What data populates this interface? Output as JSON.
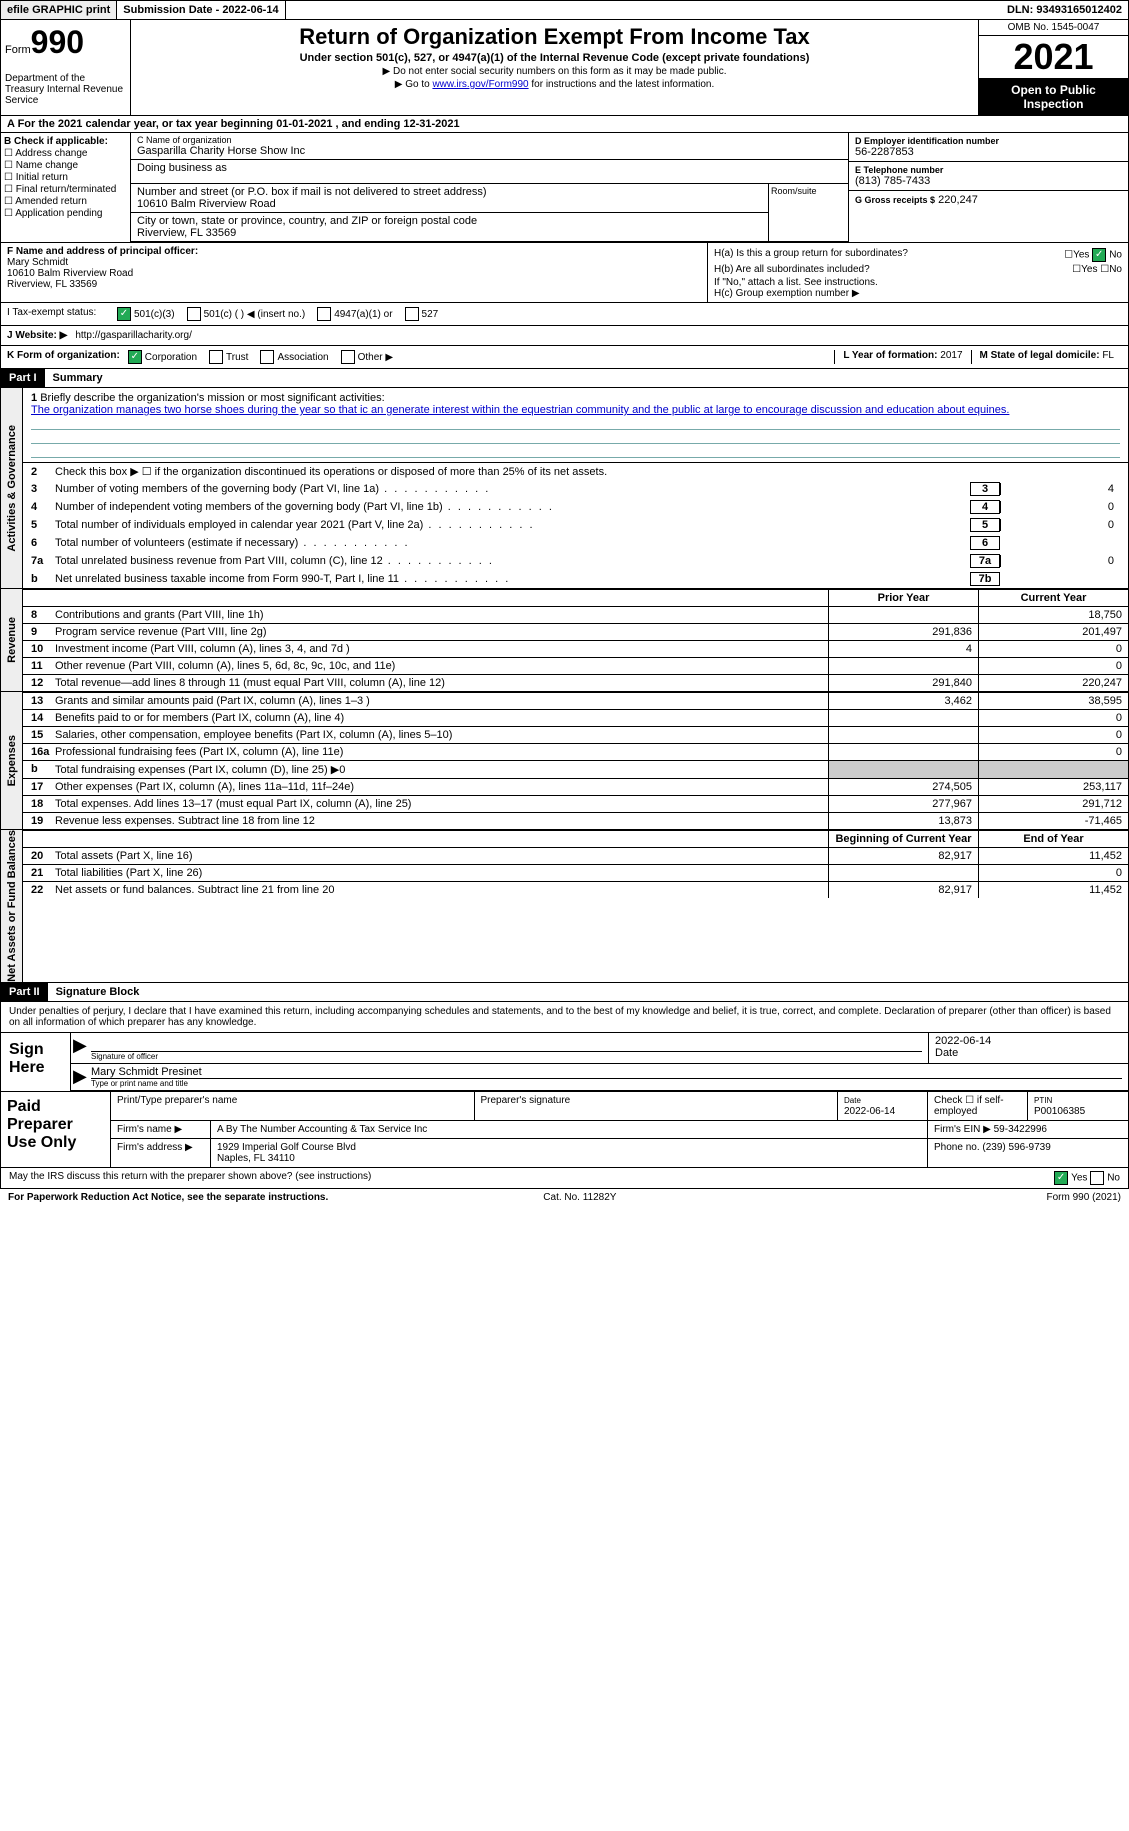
{
  "top": {
    "efile": "efile GRAPHIC print",
    "sub_date_label": "Submission Date - 2022-06-14",
    "dln": "DLN: 93493165012402"
  },
  "header": {
    "form_label": "Form",
    "form_num": "990",
    "dept": "Department of the Treasury\nInternal Revenue Service",
    "title": "Return of Organization Exempt From Income Tax",
    "sub": "Under section 501(c), 527, or 4947(a)(1) of the Internal Revenue Code (except private foundations)",
    "note1": "▶ Do not enter social security numbers on this form as it may be made public.",
    "note2_pre": "▶ Go to ",
    "note2_link": "www.irs.gov/Form990",
    "note2_post": " for instructions and the latest information.",
    "omb": "OMB No. 1545-0047",
    "year": "2021",
    "open": "Open to Public Inspection"
  },
  "rowA": "A For the 2021 calendar year, or tax year beginning 01-01-2021   , and ending 12-31-2021",
  "boxB": {
    "title": "B Check if applicable:",
    "items": [
      "Address change",
      "Name change",
      "Initial return",
      "Final return/terminated",
      "Amended return",
      "Application pending"
    ]
  },
  "boxC": {
    "name_lbl": "C Name of organization",
    "name": "Gasparilla Charity Horse Show Inc",
    "dba_lbl": "Doing business as",
    "addr_lbl": "Number and street (or P.O. box if mail is not delivered to street address)",
    "addr": "10610 Balm Riverview Road",
    "room_lbl": "Room/suite",
    "city_lbl": "City or town, state or province, country, and ZIP or foreign postal code",
    "city": "Riverview, FL  33569"
  },
  "boxD": {
    "lbl": "D Employer identification number",
    "val": "56-2287853"
  },
  "boxE": {
    "lbl": "E Telephone number",
    "val": "(813) 785-7433"
  },
  "boxG": {
    "lbl": "G Gross receipts $",
    "val": "220,247"
  },
  "boxF": {
    "lbl": "F Name and address of principal officer:",
    "name": "Mary Schmidt",
    "addr1": "10610 Balm Riverview Road",
    "addr2": "Riverview, FL  33569"
  },
  "boxH": {
    "ha": "H(a)  Is this a group return for subordinates?",
    "hb": "H(b)  Are all subordinates included?",
    "hb_note": "If \"No,\" attach a list. See instructions.",
    "hc": "H(c)  Group exemption number ▶"
  },
  "statusI": {
    "lbl": "I   Tax-exempt status:",
    "opts": [
      "501(c)(3)",
      "501(c) (  ) ◀ (insert no.)",
      "4947(a)(1) or",
      "527"
    ]
  },
  "rowJ": {
    "lbl": "J   Website: ▶",
    "val": "http://gasparillacharity.org/"
  },
  "rowK": {
    "lbl": "K Form of organization:",
    "opts": [
      "Corporation",
      "Trust",
      "Association",
      "Other ▶"
    ],
    "L_lbl": "L Year of formation:",
    "L_val": "2017",
    "M_lbl": "M State of legal domicile:",
    "M_val": "FL"
  },
  "part1": {
    "hdr": "Part I",
    "title": "Summary"
  },
  "mission": {
    "num": "1",
    "lbl": "Briefly describe the organization's mission or most significant activities:",
    "text": "The organization manages two horse shoes during the year so that ic an generate interest within the equestrian community and the public at large to encourage discussion and education about equines."
  },
  "gov_lines": [
    {
      "num": "2",
      "desc": "Check this box ▶ ☐ if the organization discontinued its operations or disposed of more than 25% of its net assets."
    },
    {
      "num": "3",
      "desc": "Number of voting members of the governing body (Part VI, line 1a)",
      "box": "3",
      "val": "4"
    },
    {
      "num": "4",
      "desc": "Number of independent voting members of the governing body (Part VI, line 1b)",
      "box": "4",
      "val": "0"
    },
    {
      "num": "5",
      "desc": "Total number of individuals employed in calendar year 2021 (Part V, line 2a)",
      "box": "5",
      "val": "0"
    },
    {
      "num": "6",
      "desc": "Total number of volunteers (estimate if necessary)",
      "box": "6",
      "val": ""
    },
    {
      "num": "7a",
      "desc": "Total unrelated business revenue from Part VIII, column (C), line 12",
      "box": "7a",
      "val": "0"
    },
    {
      "num": "b",
      "desc": "Net unrelated business taxable income from Form 990-T, Part I, line 11",
      "box": "7b",
      "val": ""
    }
  ],
  "col_headers": {
    "prior": "Prior Year",
    "current": "Current Year"
  },
  "revenue": [
    {
      "num": "8",
      "desc": "Contributions and grants (Part VIII, line 1h)",
      "p": "",
      "c": "18,750"
    },
    {
      "num": "9",
      "desc": "Program service revenue (Part VIII, line 2g)",
      "p": "291,836",
      "c": "201,497"
    },
    {
      "num": "10",
      "desc": "Investment income (Part VIII, column (A), lines 3, 4, and 7d )",
      "p": "4",
      "c": "0"
    },
    {
      "num": "11",
      "desc": "Other revenue (Part VIII, column (A), lines 5, 6d, 8c, 9c, 10c, and 11e)",
      "p": "",
      "c": "0"
    },
    {
      "num": "12",
      "desc": "Total revenue—add lines 8 through 11 (must equal Part VIII, column (A), line 12)",
      "p": "291,840",
      "c": "220,247"
    }
  ],
  "expenses": [
    {
      "num": "13",
      "desc": "Grants and similar amounts paid (Part IX, column (A), lines 1–3 )",
      "p": "3,462",
      "c": "38,595"
    },
    {
      "num": "14",
      "desc": "Benefits paid to or for members (Part IX, column (A), line 4)",
      "p": "",
      "c": "0"
    },
    {
      "num": "15",
      "desc": "Salaries, other compensation, employee benefits (Part IX, column (A), lines 5–10)",
      "p": "",
      "c": "0"
    },
    {
      "num": "16a",
      "desc": "Professional fundraising fees (Part IX, column (A), line 11e)",
      "p": "",
      "c": "0"
    },
    {
      "num": "b",
      "desc": "Total fundraising expenses (Part IX, column (D), line 25) ▶0",
      "shaded": true
    },
    {
      "num": "17",
      "desc": "Other expenses (Part IX, column (A), lines 11a–11d, 11f–24e)",
      "p": "274,505",
      "c": "253,117"
    },
    {
      "num": "18",
      "desc": "Total expenses. Add lines 13–17 (must equal Part IX, column (A), line 25)",
      "p": "277,967",
      "c": "291,712"
    },
    {
      "num": "19",
      "desc": "Revenue less expenses. Subtract line 18 from line 12",
      "p": "13,873",
      "c": "-71,465"
    }
  ],
  "net_headers": {
    "begin": "Beginning of Current Year",
    "end": "End of Year"
  },
  "net": [
    {
      "num": "20",
      "desc": "Total assets (Part X, line 16)",
      "p": "82,917",
      "c": "11,452"
    },
    {
      "num": "21",
      "desc": "Total liabilities (Part X, line 26)",
      "p": "",
      "c": "0"
    },
    {
      "num": "22",
      "desc": "Net assets or fund balances. Subtract line 21 from line 20",
      "p": "82,917",
      "c": "11,452"
    }
  ],
  "part2": {
    "hdr": "Part II",
    "title": "Signature Block"
  },
  "sig_decl": "Under penalties of perjury, I declare that I have examined this return, including accompanying schedules and statements, and to the best of my knowledge and belief, it is true, correct, and complete. Declaration of preparer (other than officer) is based on all information of which preparer has any knowledge.",
  "sign": {
    "left": "Sign Here",
    "sig_lbl": "Signature of officer",
    "date": "2022-06-14",
    "date_lbl": "Date",
    "name": "Mary Schmidt  Presinet",
    "name_lbl": "Type or print name and title"
  },
  "paid": {
    "left": "Paid Preparer Use Only",
    "r1": {
      "c1": "Print/Type preparer's name",
      "c2": "Preparer's signature",
      "c3_lbl": "Date",
      "c3": "2022-06-14",
      "c4": "Check ☐ if self-employed",
      "c5_lbl": "PTIN",
      "c5": "P00106385"
    },
    "r2": {
      "lbl": "Firm's name    ▶",
      "val": "A By The Number Accounting & Tax Service Inc",
      "ein_lbl": "Firm's EIN ▶",
      "ein": "59-3422996"
    },
    "r3": {
      "lbl": "Firm's address ▶",
      "val": "1929 Imperial Golf Course Blvd",
      "city": "Naples, FL  34110",
      "ph_lbl": "Phone no.",
      "ph": "(239) 596-9739"
    }
  },
  "discuss": "May the IRS discuss this return with the preparer shown above? (see instructions)",
  "footer": {
    "left": "For Paperwork Reduction Act Notice, see the separate instructions.",
    "mid": "Cat. No. 11282Y",
    "right": "Form 990 (2021)"
  },
  "side_labels": {
    "gov": "Activities & Governance",
    "rev": "Revenue",
    "exp": "Expenses",
    "net": "Net Assets or Fund Balances"
  },
  "yn": {
    "yes": "Yes",
    "no": "No"
  }
}
